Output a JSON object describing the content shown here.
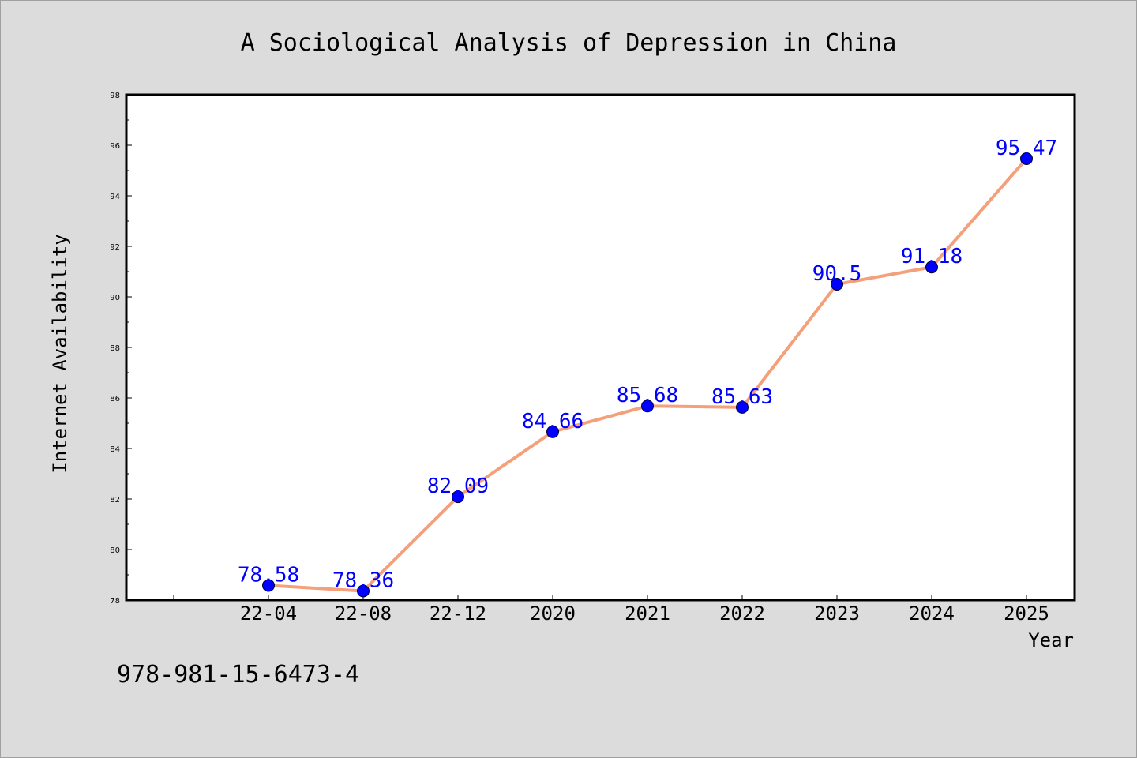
{
  "chart_data": {
    "type": "line",
    "title": "A Sociological Analysis of Depression in China",
    "xlabel": "Year",
    "ylabel": "Internet Availability",
    "categories": [
      "22-04",
      "22-08",
      "22-12",
      "2020",
      "2021",
      "2022",
      "2023",
      "2024",
      "2025"
    ],
    "series": [
      {
        "values": [
          78.58,
          78.36,
          82.09,
          84.66,
          85.68,
          85.63,
          90.5,
          91.18,
          95.47
        ]
      }
    ],
    "data_labels": [
      "78.58",
      "78.36",
      "82.09",
      "84.66",
      "85.68",
      "85.63",
      "90.5",
      "91.18",
      "95.47"
    ],
    "ylim": [
      78,
      98
    ],
    "yticks": [
      "78",
      "80",
      "82",
      "84",
      "86",
      "88",
      "90",
      "92",
      "94",
      "96",
      "98"
    ],
    "grid": false,
    "colors": {
      "line": "#f4a07a",
      "marker": "#0000ff",
      "label": "#0000ff",
      "background": "#dcdcdc",
      "plot_bg": "#ffffff"
    }
  },
  "footer": {
    "isbn": "978-981-15-6473-4"
  }
}
